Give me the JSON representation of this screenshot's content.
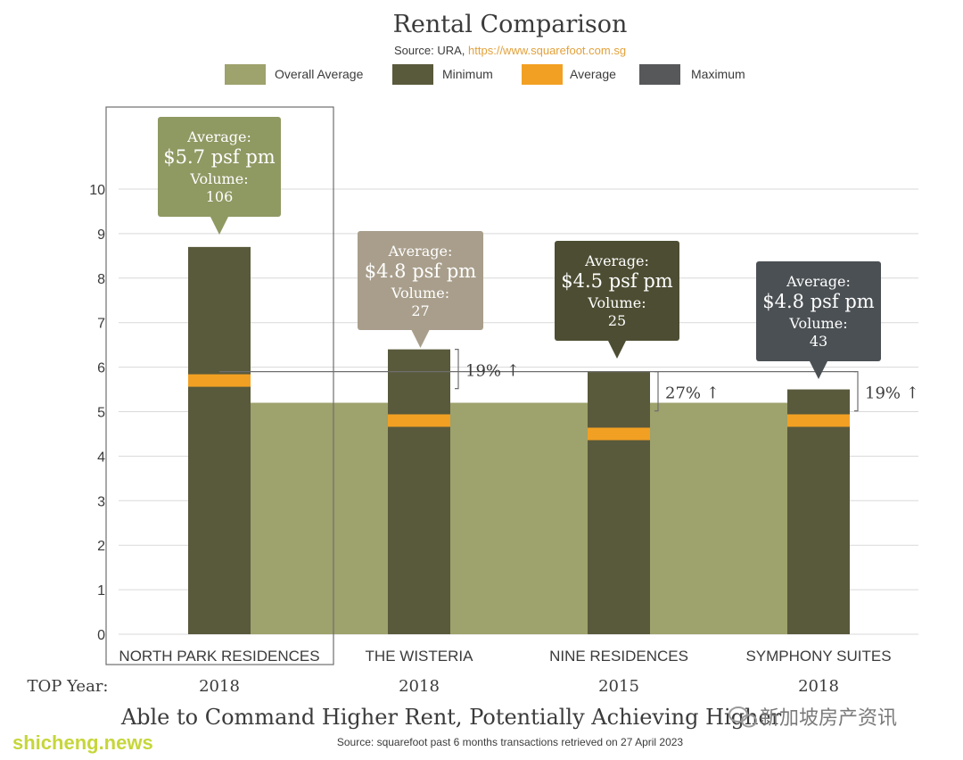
{
  "title": "Rental Comparison",
  "source_prefix": "Source: URA, ",
  "source_link": "https://www.squarefoot.com.sg",
  "legend": [
    {
      "label": "Overall Average",
      "color": "#9ea26c"
    },
    {
      "label": "Minimum",
      "color": "#59593c"
    },
    {
      "label": "Average",
      "color": "#f2a023"
    },
    {
      "label": "Maximum",
      "color": "#56585a"
    }
  ],
  "top_year_label": "TOP Year:",
  "subtitle": "Able to Command Higher Rent, Potentially Achieving Higher",
  "footer_source": "Source: squarefoot past 6 months transactions retrieved on 27 April 2023",
  "watermark_left": "shicheng.news",
  "watermark_right": "新加坡房产资讯",
  "colors": {
    "overall": "#9ea26c",
    "bar": "#59593c",
    "avg_marker": "#f2a023",
    "grid": "#d9d9d9",
    "text": "#3b3b3b",
    "link": "#e3a13b",
    "watermark": "#c6d63a"
  },
  "chart_data": {
    "type": "bar",
    "categories": [
      "NORTH PARK RESIDENCES",
      "THE WISTERIA",
      "NINE RESIDENCES",
      "SYMPHONY SUITES"
    ],
    "top_years": [
      "2018",
      "2018",
      "2015",
      "2018"
    ],
    "ylim": [
      0,
      10
    ],
    "yticks": [
      0,
      1,
      2,
      3,
      4,
      5,
      6,
      7,
      8,
      9,
      10
    ],
    "overall_average": 5.2,
    "series": [
      {
        "name": "Maximum",
        "values": [
          8.7,
          6.4,
          5.9,
          5.5
        ]
      },
      {
        "name": "Average",
        "values": [
          5.7,
          4.8,
          4.5,
          4.8
        ]
      }
    ],
    "callouts": [
      {
        "l1": "Average:",
        "price": "$5.7 psf pm",
        "l3": "Volume:",
        "volume": "106",
        "color": "#8f9962"
      },
      {
        "l1": "Average:",
        "price": "$4.8 psf pm",
        "l3": "Volume:",
        "volume": "27",
        "color": "#a89e8b"
      },
      {
        "l1": "Average:",
        "price": "$4.5 psf pm",
        "l3": "Volume:",
        "volume": "25",
        "color": "#4d4d33"
      },
      {
        "l1": "Average:",
        "price": "$4.8 psf pm",
        "l3": "Volume:",
        "volume": "43",
        "color": "#4b5054"
      }
    ],
    "comparison_reference": 5.9,
    "comparisons": [
      "19% ↑",
      "27% ↑",
      "19% ↑"
    ]
  }
}
